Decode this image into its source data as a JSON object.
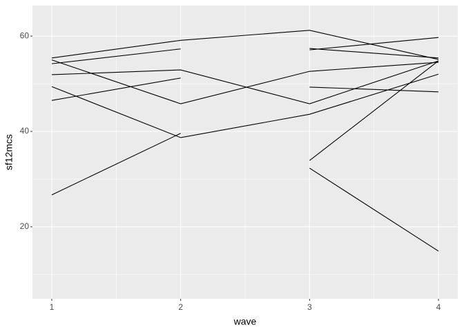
{
  "chart_data": {
    "type": "line",
    "x_label": "wave",
    "y_label": "sf12mcs",
    "x": [
      1,
      2,
      3,
      4
    ],
    "xlim": [
      0.85,
      4.15
    ],
    "xticks": [
      1,
      2,
      3,
      4
    ],
    "minor_xticks": [
      1.5,
      2.5,
      3.5
    ],
    "ylim": [
      4.9,
      66.4
    ],
    "yticks": [
      20,
      40,
      60
    ],
    "minor_yticks": [
      10,
      30,
      50
    ],
    "grid": true,
    "background": "#ebebeb",
    "series": [
      {
        "color": "#000000",
        "values": [
          55.4,
          59.1,
          61.2,
          55.1
        ]
      },
      {
        "color": "#000000",
        "values": [
          54.2,
          57.3,
          null,
          null
        ]
      },
      {
        "color": "#000000",
        "values": [
          55.0,
          45.8,
          52.6,
          54.5
        ]
      },
      {
        "color": "#000000",
        "values": [
          51.9,
          52.9,
          45.8,
          54.8
        ]
      },
      {
        "color": "#000000",
        "values": [
          46.5,
          51.2,
          null,
          null
        ]
      },
      {
        "color": "#000000",
        "values": [
          49.4,
          38.7,
          43.6,
          52.0
        ]
      },
      {
        "color": "#000000",
        "values": [
          26.7,
          39.6,
          null,
          null
        ]
      },
      {
        "color": "#000000",
        "values": [
          null,
          null,
          57.1,
          59.7
        ]
      },
      {
        "color": "#000000",
        "values": [
          null,
          null,
          57.4,
          55.4
        ]
      },
      {
        "color": "#000000",
        "values": [
          null,
          null,
          49.3,
          48.3
        ]
      },
      {
        "color": "#000000",
        "values": [
          null,
          null,
          33.9,
          54.8
        ]
      },
      {
        "color": "#000000",
        "values": [
          null,
          null,
          32.3,
          14.9
        ]
      }
    ]
  }
}
